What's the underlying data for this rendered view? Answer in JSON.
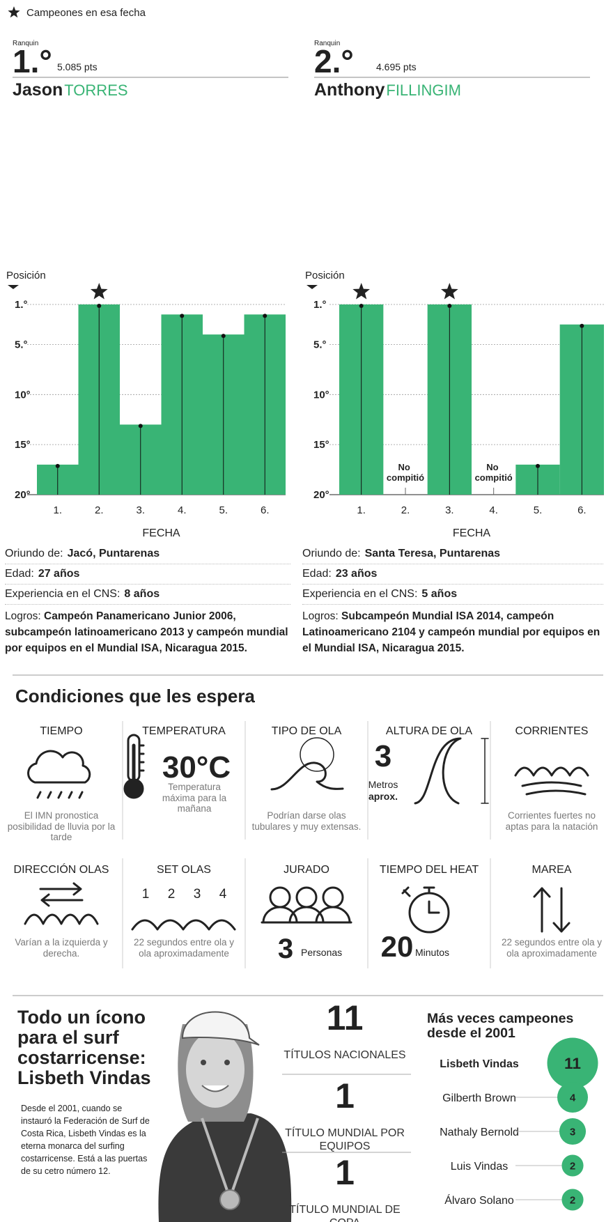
{
  "legend": {
    "star_label": "Campeones en esa fecha"
  },
  "surfers": [
    {
      "rank_label": "Ranquin",
      "rank": "1.°",
      "points": "5.085 pts",
      "first_name": "Jason",
      "last_name": "TORRES",
      "info": [
        {
          "label": "Oriundo de:",
          "value": "Jacó, Puntarenas"
        },
        {
          "label": "Edad:",
          "value": "27 años"
        },
        {
          "label": "Experiencia en el CNS:",
          "value": "8 años"
        },
        {
          "label": "Logros:",
          "value": "Campeón Panamericano Junior 2006, subcampeón latinoamericano 2013 y campeón mundial por equipos en el Mundial ISA, Nicaragua 2015."
        }
      ]
    },
    {
      "rank_label": "Ranquin",
      "rank": "2.°",
      "points": "4.695 pts",
      "first_name": "Anthony",
      "last_name": "FILLINGIM",
      "info": [
        {
          "label": "Oriundo de:",
          "value": "Santa Teresa, Puntarenas"
        },
        {
          "label": "Edad:",
          "value": "23 años"
        },
        {
          "label": "Experiencia en el CNS:",
          "value": "5 años"
        },
        {
          "label": "Logros:",
          "value": "Subcampeón Mundial ISA 2014, campeón Latinoamericano 2104 y campeón mundial por equipos en el Mundial ISA, Nicaragua 2015."
        }
      ]
    }
  ],
  "chart_data": [
    {
      "type": "bar",
      "y_label": "Posición",
      "x_label": "FECHA",
      "categories": [
        "1.",
        "2.",
        "3.",
        "4.",
        "5.",
        "6."
      ],
      "values": [
        17,
        1,
        13,
        2,
        4,
        2
      ],
      "champions": [
        false,
        true,
        false,
        false,
        false,
        false
      ],
      "color": "#39b475",
      "ylim": [
        20,
        1
      ],
      "yticks": [
        {
          "value": 1,
          "label": "1.°"
        },
        {
          "value": 5,
          "label": "5.°"
        },
        {
          "value": 10,
          "label": "10°"
        },
        {
          "value": 15,
          "label": "15°"
        },
        {
          "value": 20,
          "label": "20°"
        }
      ],
      "grid": true
    },
    {
      "type": "bar",
      "y_label": "Posición",
      "x_label": "FECHA",
      "categories": [
        "1.",
        "2.",
        "3.",
        "4.",
        "5.",
        "6."
      ],
      "values": [
        1,
        null,
        1,
        null,
        17,
        3
      ],
      "value_labels": [
        null,
        "No compitió",
        null,
        "No compitió",
        null,
        null
      ],
      "champions": [
        true,
        false,
        true,
        false,
        false,
        false
      ],
      "color": "#39b475",
      "ylim": [
        20,
        1
      ],
      "yticks": [
        {
          "value": 1,
          "label": "1.°"
        },
        {
          "value": 5,
          "label": "5.°"
        },
        {
          "value": 10,
          "label": "10°"
        },
        {
          "value": 15,
          "label": "15°"
        },
        {
          "value": 20,
          "label": "20°"
        }
      ],
      "grid": true
    },
    {
      "type": "bubble",
      "title": "Más veces campeones desde el 2001",
      "categories": [
        "Lisbeth Vindas",
        "Gilberth Brown",
        "Nathaly Bernold",
        "Luis Vindas",
        "Álvaro Solano"
      ],
      "values": [
        11,
        4,
        3,
        2,
        2
      ],
      "color": "#39b475"
    }
  ],
  "conditions": {
    "title": "Condiciones que les espera",
    "items": [
      {
        "title": "TIEMPO",
        "description": "El IMN pronostica posibilidad de lluvia por la tarde"
      },
      {
        "title": "TEMPERATURA",
        "value": "30°C",
        "description": "Temperatura máxima para la mañana"
      },
      {
        "title": "TIPO DE OLA",
        "description": "Podrían darse olas tubulares y muy extensas."
      },
      {
        "title": "ALTURA DE OLA",
        "value": "3",
        "unit": "Metros",
        "unit_note": "aprox."
      },
      {
        "title": "CORRIENTES",
        "description": "Corrientes fuertes no aptas para la natación"
      },
      {
        "title": "DIRECCIÓN OLAS",
        "description": "Varían a la izquierda y derecha."
      },
      {
        "title": "SET OLAS",
        "icon_labels": [
          "1",
          "2",
          "3",
          "4"
        ],
        "description": "22 segundos entre ola y ola aproximadamente"
      },
      {
        "title": "JURADO",
        "value": "3",
        "unit": "Personas"
      },
      {
        "title": "TIEMPO DEL HEAT",
        "value": "20",
        "unit": "Minutos"
      },
      {
        "title": "MAREA",
        "description": "22 segundos entre ola y ola aproximadamente"
      }
    ]
  },
  "profile": {
    "title": "Todo un ícono para el surf costarricense: Lisbeth Vindas",
    "text": "Desde el 2001, cuando se instauró la Federación de Surf de Costa Rica, Lisbeth Vindas es la eterna monarca del surfing costarricense. Está a las puertas de su cetro número 12.",
    "stats": [
      {
        "value": "11",
        "label": "TÍTULOS NACIONALES"
      },
      {
        "value": "1",
        "label": "TÍTULO MUNDIAL POR EQUIPOS"
      },
      {
        "value": "1",
        "label": "TÍTULO MUNDIAL DE COPA"
      }
    ]
  }
}
